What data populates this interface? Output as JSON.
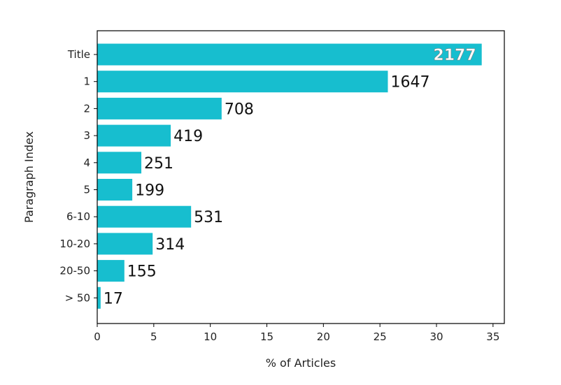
{
  "chart_data": {
    "type": "bar",
    "orientation": "horizontal",
    "title": "",
    "xlabel": "% of Articles",
    "ylabel": "Paragraph Index",
    "categories": [
      "Title",
      "1",
      "2",
      "3",
      "4",
      "5",
      "6-10",
      "10-20",
      "20-50",
      "> 50"
    ],
    "values": [
      34.0,
      25.7,
      11.0,
      6.5,
      3.9,
      3.1,
      8.3,
      4.9,
      2.4,
      0.3
    ],
    "data_labels": [
      "2177",
      "1647",
      "708",
      "419",
      "251",
      "199",
      "531",
      "314",
      "155",
      "17"
    ],
    "xlim": [
      0,
      36
    ],
    "xticks": [
      0,
      5,
      10,
      15,
      20,
      25,
      30,
      35
    ],
    "grid": false,
    "legend": "none",
    "bar_color": "#17becf"
  }
}
